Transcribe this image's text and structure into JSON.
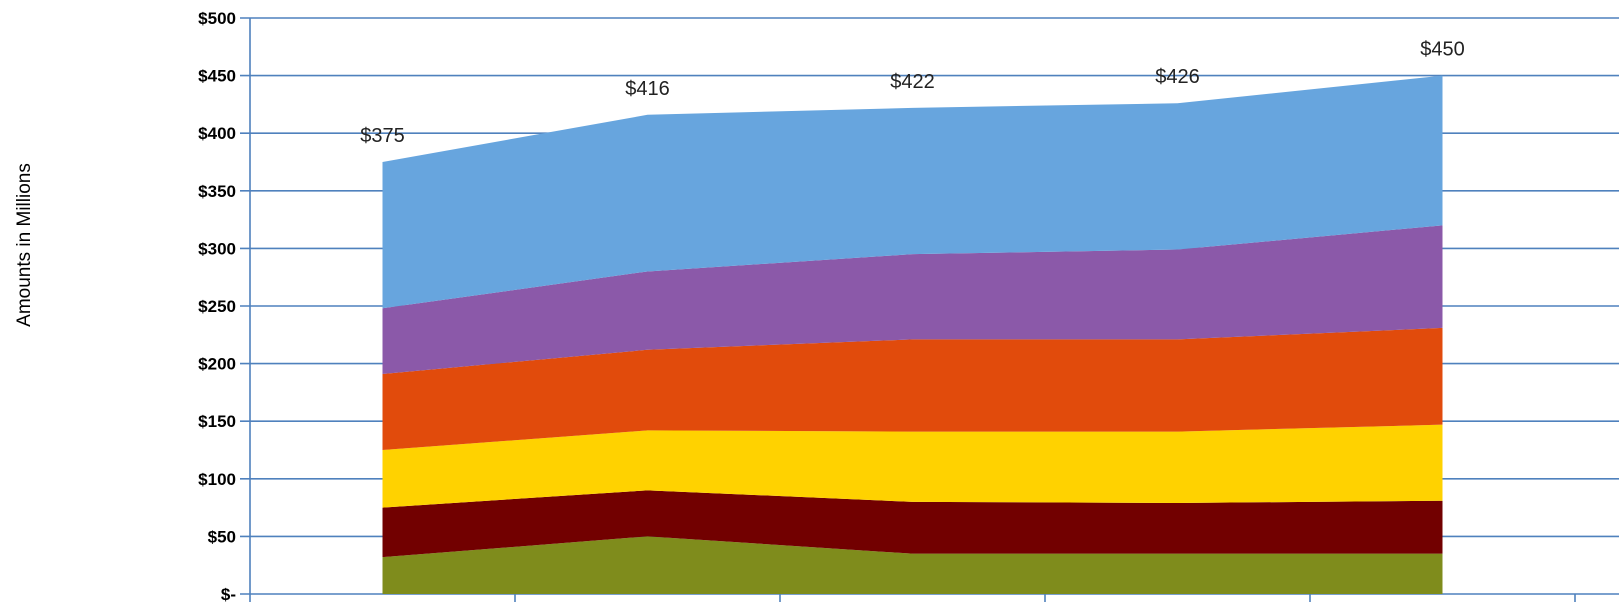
{
  "chart_data": {
    "type": "area",
    "stacked": true,
    "ylabel": "Amounts in Millions",
    "ylim": [
      0,
      500
    ],
    "yticks": [
      0,
      50,
      100,
      150,
      200,
      250,
      300,
      350,
      400,
      450,
      500
    ],
    "ytick_labels": [
      "$-",
      "$50",
      "$100",
      "$150",
      "$200",
      "$250",
      "$300",
      "$350",
      "$400",
      "$450",
      "$500"
    ],
    "grid": true,
    "legend": "none",
    "category_count": 5,
    "series": [
      {
        "color": "#7f8c1c",
        "values": [
          32,
          50,
          35,
          35,
          35
        ]
      },
      {
        "color": "#720000",
        "values": [
          43,
          40,
          45,
          44,
          46
        ]
      },
      {
        "color": "#ffd200",
        "values": [
          50,
          52,
          61,
          62,
          66
        ]
      },
      {
        "color": "#e14b0c",
        "values": [
          66,
          70,
          80,
          80,
          84
        ]
      },
      {
        "color": "#8b59a9",
        "values": [
          57,
          68,
          74,
          78,
          89
        ]
      },
      {
        "color": "#67a5de",
        "values": [
          127,
          136,
          127,
          127,
          130
        ]
      }
    ],
    "totals": [
      375,
      416,
      422,
      426,
      450
    ],
    "total_labels": [
      "$375",
      "$416",
      "$422",
      "$426",
      "$450"
    ]
  }
}
